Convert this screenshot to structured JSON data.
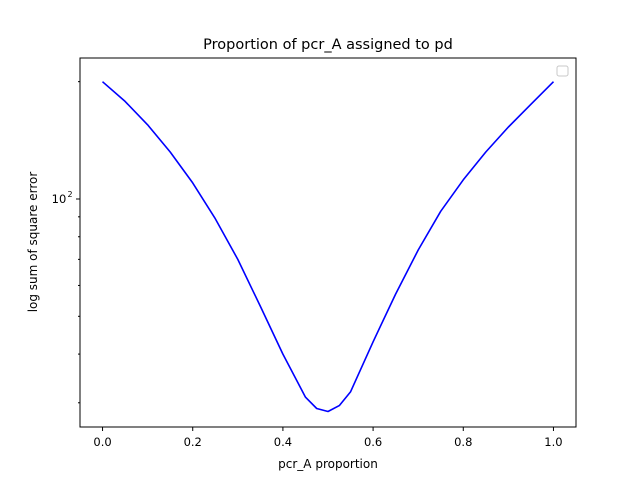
{
  "chart_data": {
    "type": "line",
    "title": "Proportion of pcr_A assigned to pd",
    "xlabel": "pcr_A proportion",
    "ylabel": "log sum of square error",
    "xlim": [
      -0.05,
      1.05
    ],
    "ylim": [
      26,
      230
    ],
    "yscale": "log",
    "x_ticks": [
      "0.0",
      "0.2",
      "0.4",
      "0.6",
      "0.8",
      "1.0"
    ],
    "x_tick_values": [
      0.0,
      0.2,
      0.4,
      0.6,
      0.8,
      1.0
    ],
    "y_ticks": [
      {
        "base": "10",
        "exp": "2",
        "value": 100
      }
    ],
    "grid": false,
    "legend": {
      "placement": "top-right",
      "entries": []
    },
    "series": [
      {
        "color": "#0000ff",
        "x": [
          0.0,
          0.05,
          0.1,
          0.15,
          0.2,
          0.25,
          0.3,
          0.35,
          0.4,
          0.45,
          0.475,
          0.5,
          0.525,
          0.55,
          0.6,
          0.65,
          0.7,
          0.75,
          0.8,
          0.85,
          0.9,
          0.95,
          1.0
        ],
        "y": [
          200,
          178,
          155,
          132,
          110,
          89,
          70,
          53,
          40,
          31,
          29,
          28.5,
          29.5,
          32,
          43,
          57,
          74,
          93,
          112,
          132,
          153,
          175,
          200
        ]
      }
    ]
  }
}
